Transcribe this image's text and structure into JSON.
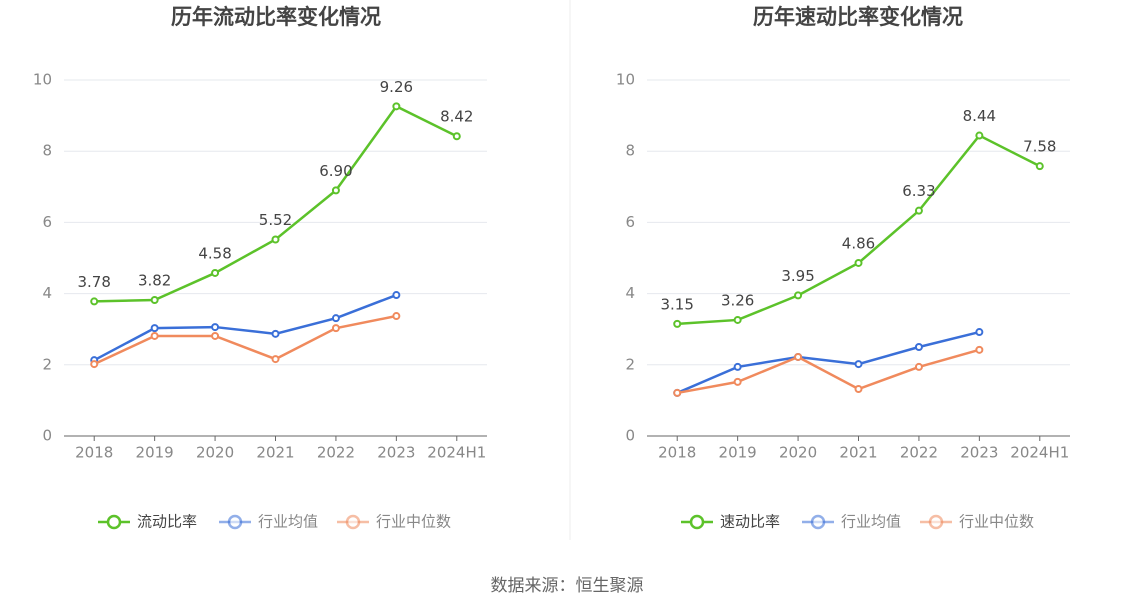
{
  "chart_data": [
    {
      "type": "line",
      "title": "历年流动比率变化情况",
      "categories": [
        "2018",
        "2019",
        "2020",
        "2021",
        "2022",
        "2023",
        "2024H1"
      ],
      "ylim": [
        0,
        10
      ],
      "yticks": [
        0,
        2,
        4,
        6,
        8,
        10
      ],
      "grid": true,
      "legend": "bottom",
      "series": [
        {
          "name": "流动比率",
          "color": "#5cc22a",
          "values": [
            3.78,
            3.82,
            4.58,
            5.52,
            6.9,
            9.26,
            8.42
          ],
          "value_labels": [
            "3.78",
            "3.82",
            "4.58",
            "5.52",
            "6.90",
            "9.26",
            "8.42"
          ]
        },
        {
          "name": "行业均值",
          "color": "#3a6fd8",
          "values": [
            2.13,
            3.03,
            3.06,
            2.87,
            3.31,
            3.96,
            null
          ]
        },
        {
          "name": "行业中位数",
          "color": "#f08a5d",
          "values": [
            2.02,
            2.81,
            2.81,
            2.16,
            3.03,
            3.37,
            null
          ]
        }
      ]
    },
    {
      "type": "line",
      "title": "历年速动比率变化情况",
      "categories": [
        "2018",
        "2019",
        "2020",
        "2021",
        "2022",
        "2023",
        "2024H1"
      ],
      "ylim": [
        0,
        10
      ],
      "yticks": [
        0,
        2,
        4,
        6,
        8,
        10
      ],
      "grid": true,
      "legend": "bottom",
      "series": [
        {
          "name": "速动比率",
          "color": "#5cc22a",
          "values": [
            3.15,
            3.26,
            3.95,
            4.86,
            6.33,
            8.44,
            7.58
          ],
          "value_labels": [
            "3.15",
            "3.26",
            "3.95",
            "4.86",
            "6.33",
            "8.44",
            "7.58"
          ]
        },
        {
          "name": "行业均值",
          "color": "#3a6fd8",
          "values": [
            1.21,
            1.94,
            2.22,
            2.02,
            2.5,
            2.92,
            null
          ]
        },
        {
          "name": "行业中位数",
          "color": "#f08a5d",
          "values": [
            1.21,
            1.52,
            2.22,
            1.32,
            1.94,
            2.42,
            null
          ]
        }
      ]
    }
  ],
  "source": "数据来源：恒生聚源"
}
